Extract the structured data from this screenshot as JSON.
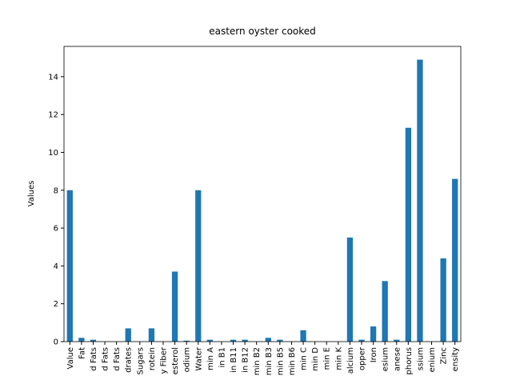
{
  "chart_data": {
    "type": "bar",
    "title": "eastern oyster cooked",
    "y_label": "Values",
    "categories": [
      "Value",
      "Fat",
      "d Fats",
      "d Fats",
      "d Fats",
      "drates",
      "Sugars",
      "rotein",
      "y Fiber",
      "esterol",
      "odium",
      "Water",
      "min A",
      "in B1",
      "in B11",
      "in B12",
      "min B2",
      "min B3",
      "min B5",
      "min B6",
      "min C",
      "min D",
      "min E",
      "min K",
      "alcium",
      "opper",
      "Iron",
      "esium",
      "anese",
      "phorus",
      "ssium",
      "enium",
      "Zinc",
      "ensity"
    ],
    "values": [
      8.0,
      0.2,
      0.1,
      0,
      0,
      0.7,
      0,
      0.7,
      0,
      3.7,
      0.05,
      8.0,
      0.1,
      0,
      0.1,
      0.1,
      0,
      0.2,
      0.1,
      0,
      0.6,
      0,
      0,
      0,
      5.5,
      0.1,
      0.8,
      3.2,
      0.1,
      11.3,
      14.9,
      0,
      4.4,
      8.6
    ],
    "color": "#1f77b4",
    "ylim": [
      0,
      15.6
    ],
    "yticks": [
      0,
      2,
      4,
      6,
      8,
      10,
      12,
      14
    ],
    "grid": false
  }
}
